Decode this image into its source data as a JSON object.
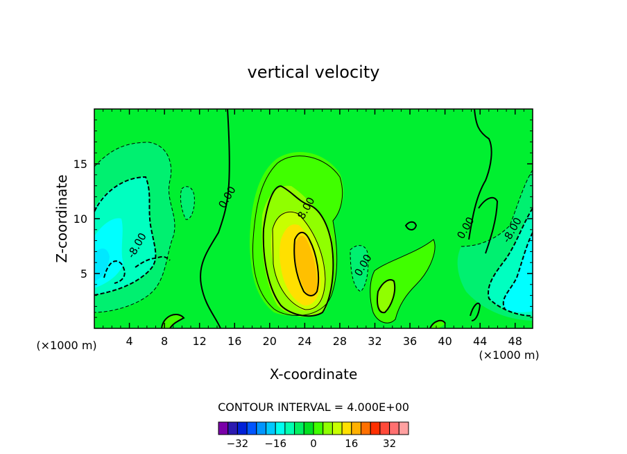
{
  "chart_data": {
    "type": "heatmap",
    "title": "vertical velocity",
    "xlabel": "X-coordinate",
    "ylabel": "Z-coordinate",
    "x_unit_label": "(×1000 m)",
    "xlim": [
      0,
      50
    ],
    "ylim": [
      0,
      20
    ],
    "x_ticks": [
      4,
      8,
      12,
      16,
      20,
      24,
      28,
      32,
      36,
      40,
      44,
      48
    ],
    "y_ticks": [
      5,
      10,
      15
    ],
    "contour_interval_text": "CONTOUR INTERVAL = 4.000E+00",
    "contour_labels": [
      {
        "text": "0.00",
        "x": 15.5,
        "y": 11.8
      },
      {
        "text": "8.00",
        "x": 24.5,
        "y": 10.8
      },
      {
        "text": "-8.00",
        "x": 5.2,
        "y": 7.4
      },
      {
        "text": "0.00",
        "x": 31.0,
        "y": 5.6
      },
      {
        "text": "0.00",
        "x": 42.7,
        "y": 9.0
      },
      {
        "text": "-8.00",
        "x": 48.0,
        "y": 8.8
      }
    ],
    "colorbar": {
      "colors": [
        "#7a00a8",
        "#2c1ab0",
        "#0020d8",
        "#0055ff",
        "#0095ff",
        "#00c8ff",
        "#00fff0",
        "#00ffb0",
        "#00f060",
        "#00e020",
        "#40ff00",
        "#90ff00",
        "#c8ff00",
        "#ffe000",
        "#ffb000",
        "#ff7000",
        "#ff3000",
        "#ff4a3a",
        "#ff7070",
        "#ffa0a0"
      ],
      "tick_labels": [
        "-32",
        "-16",
        "0",
        "16",
        "32"
      ],
      "tick_values": [
        -32,
        -16,
        0,
        16,
        32
      ],
      "range": [
        -40,
        40
      ]
    },
    "fill_levels": [
      {
        "level": 0,
        "color": "#00f030"
      },
      {
        "level": 4,
        "color": "#40ff00"
      },
      {
        "level": 8,
        "color": "#90ff00"
      },
      {
        "level": 12,
        "color": "#c8ff00"
      },
      {
        "level": 16,
        "color": "#ffe000"
      },
      {
        "level": 20,
        "color": "#ffc000"
      },
      {
        "level": -4,
        "color": "#00f070"
      },
      {
        "level": -8,
        "color": "#00ffc0"
      },
      {
        "level": -12,
        "color": "#00ffff"
      }
    ]
  }
}
